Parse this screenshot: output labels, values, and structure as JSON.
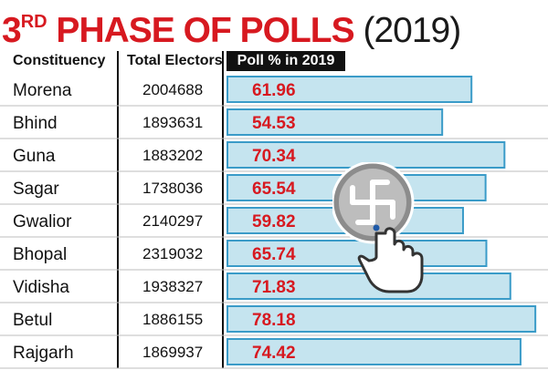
{
  "title": {
    "prefix": "3",
    "ordinal": "RD",
    "main": " PHASE OF POLLS",
    "year": "(2019)"
  },
  "headers": {
    "constituency": "Constituency",
    "electors": "Total Electors",
    "poll": "Poll % in 2019"
  },
  "colors": {
    "bar_fill": "#c5e4ef",
    "bar_stroke": "#3a9bc8",
    "value_text": "#d71920",
    "title_red": "#d71920"
  },
  "chart_data": {
    "type": "bar",
    "title": "3RD PHASE OF POLLS (2019)",
    "categories": [
      "Morena",
      "Bhind",
      "Guna",
      "Sagar",
      "Gwalior",
      "Bhopal",
      "Vidisha",
      "Betul",
      "Rajgarh"
    ],
    "total_electors": [
      "2004688",
      "1893631",
      "1883202",
      "1738036",
      "2140297",
      "2319032",
      "1938327",
      "1886155",
      "1869937"
    ],
    "series": [
      {
        "name": "Poll % in 2019",
        "values": [
          61.96,
          54.53,
          70.34,
          65.54,
          59.82,
          65.74,
          71.83,
          78.18,
          74.42
        ]
      }
    ],
    "value_labels": [
      "61.96",
      "54.53",
      "70.34",
      "65.54",
      "59.82",
      "65.74",
      "71.83",
      "78.18",
      "74.42"
    ],
    "xlabel": "",
    "ylabel": "",
    "xlim": [
      0,
      80
    ],
    "grid": false,
    "legend": "none"
  },
  "icons": {
    "illustration": "ballot-stamp-icon"
  }
}
